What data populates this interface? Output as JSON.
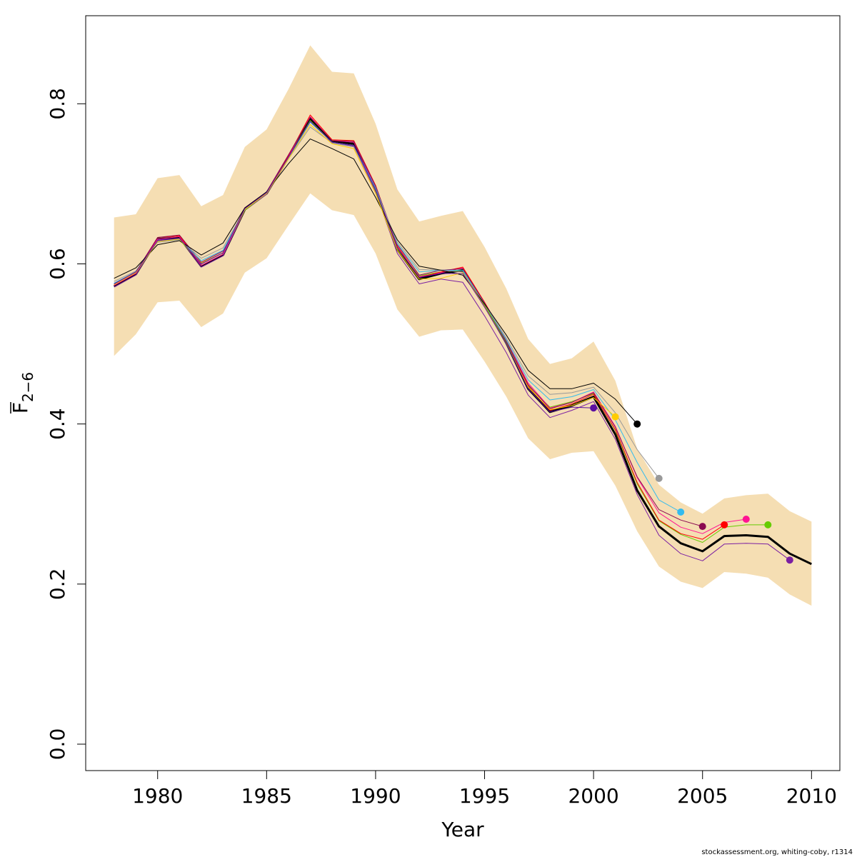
{
  "chart_data": {
    "type": "line",
    "title": "",
    "xlabel": "Year",
    "ylabel_main": "F",
    "ylabel_sub": "2−6",
    "xlim": [
      1976.7,
      2011.3
    ],
    "ylim": [
      -0.033,
      0.91
    ],
    "x_ticks": [
      1980,
      1985,
      1990,
      1995,
      2000,
      2005,
      2010
    ],
    "y_ticks": [
      0.0,
      0.2,
      0.4,
      0.6,
      0.8
    ],
    "y_tick_labels": [
      "0.0",
      "0.2",
      "0.4",
      "0.6",
      "0.8"
    ],
    "grid": false,
    "legend": "none",
    "band": {
      "color": "#F5DEB3",
      "x": [
        1978,
        1979,
        1980,
        1981,
        1982,
        1983,
        1984,
        1985,
        1986,
        1987,
        1988,
        1989,
        1990,
        1991,
        1992,
        1993,
        1994,
        1995,
        1996,
        1997,
        1998,
        1999,
        2000,
        2001,
        2002,
        2003,
        2004,
        2005,
        2006,
        2007,
        2008,
        2009,
        2010
      ],
      "upper": [
        0.658,
        0.662,
        0.707,
        0.711,
        0.672,
        0.686,
        0.746,
        0.768,
        0.818,
        0.873,
        0.84,
        0.838,
        0.775,
        0.693,
        0.653,
        0.66,
        0.666,
        0.621,
        0.569,
        0.506,
        0.475,
        0.482,
        0.503,
        0.454,
        0.369,
        0.324,
        0.302,
        0.288,
        0.307,
        0.311,
        0.313,
        0.291,
        0.278
      ],
      "lower": [
        0.485,
        0.512,
        0.552,
        0.554,
        0.521,
        0.538,
        0.589,
        0.607,
        0.648,
        0.688,
        0.667,
        0.661,
        0.613,
        0.543,
        0.509,
        0.517,
        0.518,
        0.478,
        0.434,
        0.382,
        0.356,
        0.364,
        0.366,
        0.323,
        0.266,
        0.222,
        0.203,
        0.195,
        0.215,
        0.213,
        0.208,
        0.187,
        0.173
      ]
    },
    "series": [
      {
        "color": "#000000",
        "width": 3,
        "terminal_point": false,
        "x": [
          1978,
          1979,
          1980,
          1981,
          1982,
          1983,
          1984,
          1985,
          1986,
          1987,
          1988,
          1989,
          1990,
          1991,
          1992,
          1993,
          1994,
          1995,
          1996,
          1997,
          1998,
          1999,
          2000,
          2001,
          2002,
          2003,
          2004,
          2005,
          2006,
          2007,
          2008,
          2009,
          2010
        ],
        "y": [
          0.572,
          0.587,
          0.631,
          0.633,
          0.597,
          0.611,
          0.668,
          0.688,
          0.733,
          0.781,
          0.753,
          0.75,
          0.694,
          0.618,
          0.581,
          0.588,
          0.592,
          0.549,
          0.501,
          0.444,
          0.415,
          0.423,
          0.434,
          0.387,
          0.317,
          0.272,
          0.251,
          0.241,
          0.26,
          0.261,
          0.259,
          0.238,
          0.225
        ]
      },
      {
        "color": "#7B1FA2",
        "width": 1,
        "terminal_point": true,
        "x": [
          1978,
          1979,
          1980,
          1981,
          1982,
          1983,
          1984,
          1985,
          1986,
          1987,
          1988,
          1989,
          1990,
          1991,
          1992,
          1993,
          1994,
          1995,
          1996,
          1997,
          1998,
          1999,
          2000,
          2001,
          2002,
          2003,
          2004,
          2005,
          2006,
          2007,
          2008,
          2009
        ],
        "y": [
          0.571,
          0.586,
          0.63,
          0.632,
          0.596,
          0.61,
          0.667,
          0.687,
          0.731,
          0.779,
          0.751,
          0.747,
          0.69,
          0.613,
          0.575,
          0.581,
          0.577,
          0.535,
          0.489,
          0.436,
          0.408,
          0.417,
          0.428,
          0.381,
          0.312,
          0.261,
          0.238,
          0.229,
          0.25,
          0.251,
          0.25,
          0.23
        ]
      },
      {
        "color": "#66CC00",
        "width": 1,
        "terminal_point": true,
        "x": [
          1978,
          1979,
          1980,
          1981,
          1982,
          1983,
          1984,
          1985,
          1986,
          1987,
          1988,
          1989,
          1990,
          1991,
          1992,
          1993,
          1994,
          1995,
          1996,
          1997,
          1998,
          1999,
          2000,
          2001,
          2002,
          2003,
          2004,
          2005,
          2006,
          2007,
          2008
        ],
        "y": [
          0.575,
          0.589,
          0.629,
          0.63,
          0.601,
          0.614,
          0.667,
          0.688,
          0.733,
          0.779,
          0.752,
          0.748,
          0.692,
          0.619,
          0.585,
          0.59,
          0.592,
          0.549,
          0.502,
          0.448,
          0.421,
          0.428,
          0.438,
          0.392,
          0.325,
          0.279,
          0.262,
          0.252,
          0.271,
          0.274,
          0.274
        ]
      },
      {
        "color": "#FF1493",
        "width": 1,
        "terminal_point": true,
        "x": [
          1978,
          1979,
          1980,
          1981,
          1982,
          1983,
          1984,
          1985,
          1986,
          1987,
          1988,
          1989,
          1990,
          1991,
          1992,
          1993,
          1994,
          1995,
          1996,
          1997,
          1998,
          1999,
          2000,
          2001,
          2002,
          2003,
          2004,
          2005,
          2006,
          2007
        ],
        "y": [
          0.573,
          0.588,
          0.631,
          0.634,
          0.598,
          0.612,
          0.668,
          0.688,
          0.734,
          0.784,
          0.754,
          0.752,
          0.696,
          0.62,
          0.584,
          0.589,
          0.595,
          0.552,
          0.505,
          0.451,
          0.42,
          0.427,
          0.44,
          0.397,
          0.333,
          0.289,
          0.271,
          0.263,
          0.277,
          0.281
        ]
      },
      {
        "color": "#FF0000",
        "width": 1,
        "terminal_point": true,
        "x": [
          1978,
          1979,
          1980,
          1981,
          1982,
          1983,
          1984,
          1985,
          1986,
          1987,
          1988,
          1989,
          1990,
          1991,
          1992,
          1993,
          1994,
          1995,
          1996,
          1997,
          1998,
          1999,
          2000,
          2001,
          2002,
          2003,
          2004,
          2005,
          2006
        ],
        "y": [
          0.574,
          0.589,
          0.633,
          0.635,
          0.6,
          0.614,
          0.67,
          0.689,
          0.735,
          0.786,
          0.755,
          0.754,
          0.698,
          0.622,
          0.583,
          0.59,
          0.596,
          0.552,
          0.504,
          0.447,
          0.417,
          0.425,
          0.437,
          0.393,
          0.327,
          0.28,
          0.263,
          0.256,
          0.274
        ]
      },
      {
        "color": "#8B0A50",
        "width": 1,
        "terminal_point": true,
        "x": [
          1978,
          1979,
          1980,
          1981,
          1982,
          1983,
          1984,
          1985,
          1986,
          1987,
          1988,
          1989,
          1990,
          1991,
          1992,
          1993,
          1994,
          1995,
          1996,
          1997,
          1998,
          1999,
          2000,
          2001,
          2002,
          2003,
          2004,
          2005
        ],
        "y": [
          0.575,
          0.59,
          0.633,
          0.636,
          0.602,
          0.616,
          0.67,
          0.69,
          0.736,
          0.783,
          0.754,
          0.753,
          0.697,
          0.624,
          0.586,
          0.592,
          0.594,
          0.551,
          0.503,
          0.449,
          0.419,
          0.427,
          0.439,
          0.396,
          0.334,
          0.293,
          0.28,
          0.272
        ]
      },
      {
        "color": "#33BBEE",
        "width": 1,
        "terminal_point": true,
        "x": [
          1978,
          1979,
          1980,
          1981,
          1982,
          1983,
          1984,
          1985,
          1986,
          1987,
          1988,
          1989,
          1990,
          1991,
          1992,
          1993,
          1994,
          1995,
          1996,
          1997,
          1998,
          1999,
          2000,
          2001,
          2002,
          2003,
          2004
        ],
        "y": [
          0.576,
          0.59,
          0.629,
          0.631,
          0.604,
          0.617,
          0.668,
          0.688,
          0.732,
          0.777,
          0.752,
          0.748,
          0.695,
          0.625,
          0.59,
          0.592,
          0.592,
          0.55,
          0.505,
          0.455,
          0.43,
          0.434,
          0.443,
          0.405,
          0.352,
          0.305,
          0.29
        ]
      },
      {
        "color": "#999999",
        "width": 1,
        "terminal_point": true,
        "x": [
          1978,
          1979,
          1980,
          1981,
          1982,
          1983,
          1984,
          1985,
          1986,
          1987,
          1988,
          1989,
          1990,
          1991,
          1992,
          1993,
          1994,
          1995,
          1996,
          1997,
          1998,
          1999,
          2000,
          2001,
          2002,
          2003
        ],
        "y": [
          0.578,
          0.591,
          0.627,
          0.63,
          0.607,
          0.62,
          0.668,
          0.689,
          0.731,
          0.771,
          0.751,
          0.746,
          0.693,
          0.627,
          0.593,
          0.592,
          0.59,
          0.55,
          0.507,
          0.46,
          0.437,
          0.439,
          0.446,
          0.414,
          0.368,
          0.332
        ]
      },
      {
        "color": "#000000",
        "width": 1,
        "terminal_point": true,
        "x": [
          1978,
          1979,
          1980,
          1981,
          1982,
          1983,
          1984,
          1985,
          1986,
          1987,
          1988,
          1989,
          1990,
          1991,
          1992,
          1993,
          1994,
          1995,
          1996,
          1997,
          1998,
          1999,
          2000,
          2001,
          2002
        ],
        "y": [
          0.582,
          0.595,
          0.624,
          0.629,
          0.611,
          0.626,
          0.67,
          0.69,
          0.725,
          0.756,
          0.744,
          0.731,
          0.683,
          0.63,
          0.597,
          0.592,
          0.586,
          0.55,
          0.511,
          0.467,
          0.444,
          0.444,
          0.451,
          0.431,
          0.4
        ]
      },
      {
        "color": "#FFCC00",
        "width": 1,
        "terminal_point": true,
        "x": [
          1978,
          1979,
          1980,
          1981,
          1982,
          1983,
          1984,
          1985,
          1986,
          1987,
          1988,
          1989,
          1990,
          1991,
          1992,
          1993,
          1994,
          1995,
          1996,
          1997,
          1998,
          1999,
          2000,
          2001
        ],
        "y": [
          0.574,
          0.589,
          0.628,
          0.631,
          0.601,
          0.614,
          0.668,
          0.688,
          0.731,
          0.774,
          0.75,
          0.744,
          0.688,
          0.617,
          0.581,
          0.582,
          0.589,
          0.547,
          0.5,
          0.446,
          0.418,
          0.423,
          0.433,
          0.409
        ]
      },
      {
        "color": "#5B0FA0",
        "width": 1,
        "terminal_point": true,
        "x": [
          1978,
          1979,
          1980,
          1981,
          1982,
          1983,
          1984,
          1985,
          1986,
          1987,
          1988,
          1989,
          1990,
          1991,
          1992,
          1993,
          1994,
          1995,
          1996,
          1997,
          1998,
          1999,
          2000
        ],
        "y": [
          0.575,
          0.59,
          0.629,
          0.632,
          0.6,
          0.614,
          0.669,
          0.689,
          0.733,
          0.778,
          0.752,
          0.748,
          0.693,
          0.62,
          0.583,
          0.588,
          0.588,
          0.546,
          0.5,
          0.444,
          0.415,
          0.421,
          0.42
        ]
      }
    ]
  },
  "credit": "stockassessment.org, whiting-coby, r1314"
}
